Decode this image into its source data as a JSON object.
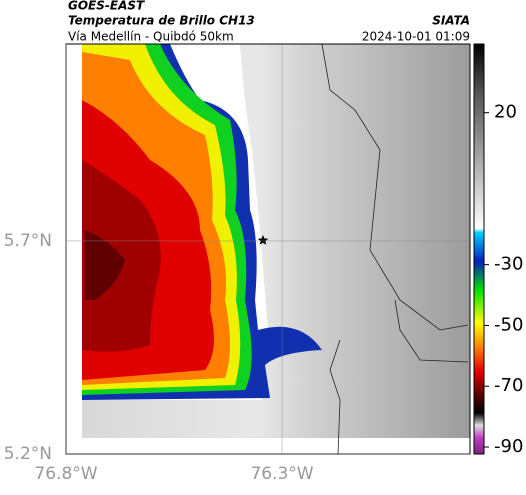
{
  "header": {
    "title": "GOES-EAST",
    "subtitle": "Temperatura de Brillo CH13",
    "location": "Vía Medellín - Quibdó 50km",
    "source": "SIATA",
    "datetime": "2024-10-01 01:09"
  },
  "map": {
    "xlim": [
      -76.8,
      -75.865
    ],
    "ylim": [
      5.2,
      6.162
    ],
    "xticks": [
      {
        "value": -76.8,
        "label": "76.8°W"
      },
      {
        "value": -76.3,
        "label": "76.3°W"
      }
    ],
    "yticks": [
      {
        "value": 5.2,
        "label": "5.2°N"
      },
      {
        "value": 5.7,
        "label": "5.7°N"
      }
    ]
  },
  "colorbar": {
    "lim": [
      -92.3,
      42.6
    ],
    "ticks": [
      20,
      -30,
      -50,
      -70,
      -90
    ]
  }
}
